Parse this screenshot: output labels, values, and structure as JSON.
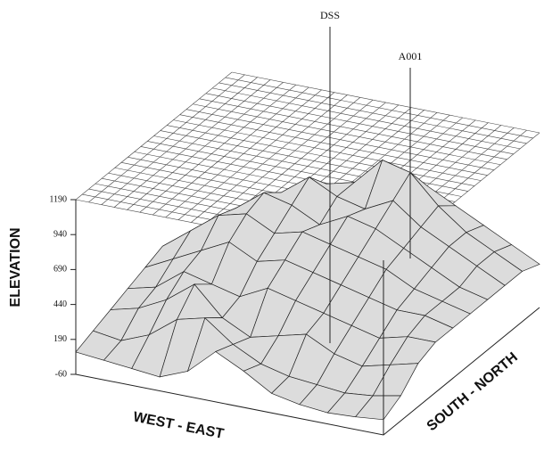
{
  "chart_data": {
    "type": "surface",
    "annotations": [
      "DSS",
      "A001"
    ],
    "zlabel": "ELEVATION",
    "xlabel": "WEST - EAST",
    "ylabel": "SOUTH - NORTH",
    "zlim": [
      -60,
      1190
    ],
    "zticks": [
      -60,
      190,
      440,
      690,
      940,
      1190
    ],
    "color": "#dcdcdc",
    "z": [
      [
        100,
        80,
        60,
        40,
        120,
        300,
        200,
        80,
        40,
        20,
        30,
        50
      ],
      [
        150,
        120,
        200,
        350,
        400,
        250,
        150,
        100,
        80,
        60,
        80,
        120
      ],
      [
        200,
        250,
        350,
        500,
        300,
        200,
        250,
        300,
        200,
        150,
        200,
        250
      ],
      [
        250,
        300,
        450,
        400,
        350,
        450,
        400,
        350,
        300,
        250,
        300,
        300
      ],
      [
        300,
        400,
        500,
        600,
        500,
        550,
        500,
        450,
        400,
        350,
        350,
        300
      ],
      [
        350,
        500,
        650,
        700,
        600,
        650,
        600,
        550,
        500,
        400,
        350,
        300
      ],
      [
        300,
        450,
        600,
        750,
        700,
        600,
        700,
        650,
        550,
        450,
        350,
        300
      ],
      [
        250,
        400,
        550,
        650,
        800,
        700,
        650,
        750,
        600,
        500,
        400,
        300
      ],
      [
        200,
        350,
        450,
        550,
        650,
        700,
        900,
        850,
        650,
        500,
        400,
        300
      ],
      [
        150,
        300,
        400,
        450,
        550,
        600,
        700,
        650,
        550,
        450,
        350,
        250
      ]
    ]
  }
}
